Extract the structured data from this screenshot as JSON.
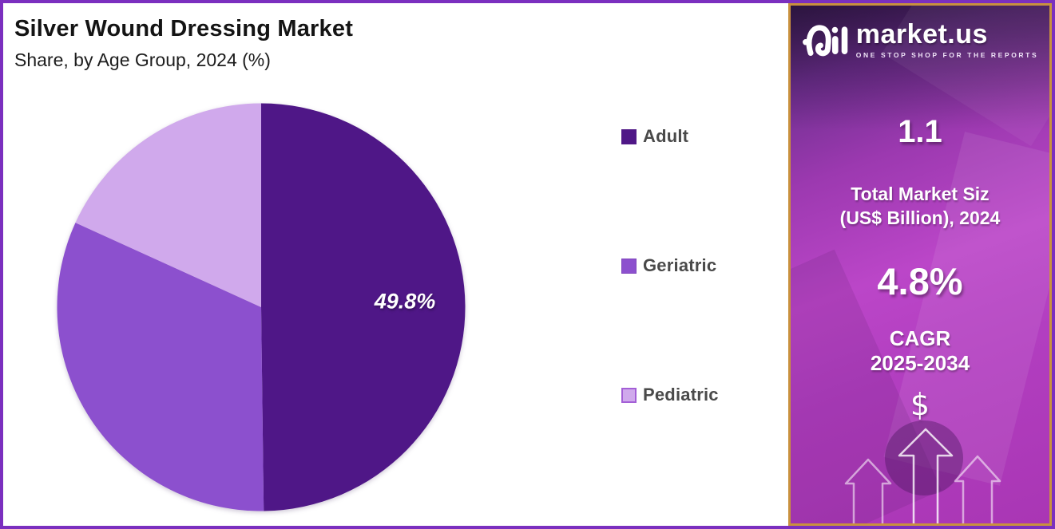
{
  "header": {
    "title": "Silver Wound Dressing Market",
    "subtitle": "Share, by Age Group, 2024 (%)"
  },
  "chart_data": {
    "type": "pie",
    "title": "Silver Wound Dressing Market",
    "subtitle": "Share, by Age Group, 2024 (%)",
    "categories": [
      "Adult",
      "Geriatric",
      "Pediatric"
    ],
    "values": [
      49.8,
      32.0,
      18.2
    ],
    "unit": "%",
    "colors": [
      "#4F1787",
      "#8C50CE",
      "#D0A9EC"
    ],
    "data_labels": [
      "49.8%",
      "",
      ""
    ],
    "start_angle_deg": 0,
    "direction": "clockwise",
    "legend_position": "right"
  },
  "legend": {
    "items": [
      {
        "label": "Adult",
        "color": "#4F1787"
      },
      {
        "label": "Geriatric",
        "color": "#8C50CE"
      },
      {
        "label": "Pediatric",
        "color": "#D0A9EC"
      }
    ]
  },
  "sidebar": {
    "brand": {
      "name": "market.us",
      "tagline": "ONE STOP SHOP FOR THE REPORTS"
    },
    "market_size": {
      "value": "1.1",
      "label_line1": "Total Market Siz",
      "label_line2": "(US$ Billion), 2024"
    },
    "cagr": {
      "value": "4.8%",
      "label_line1": "CAGR",
      "label_line2": "2025-2034"
    },
    "dollar_symbol": "$"
  },
  "colors": {
    "page_border": "#7B2FBF",
    "sidebar_border": "#C9913E",
    "adult_slice": "#4F1787",
    "geriatric_slice": "#8C50CE",
    "pediatric_slice": "#D0A9EC",
    "legend_text": "#4A4A4A",
    "pie_label_text": "#FFFFFF"
  }
}
